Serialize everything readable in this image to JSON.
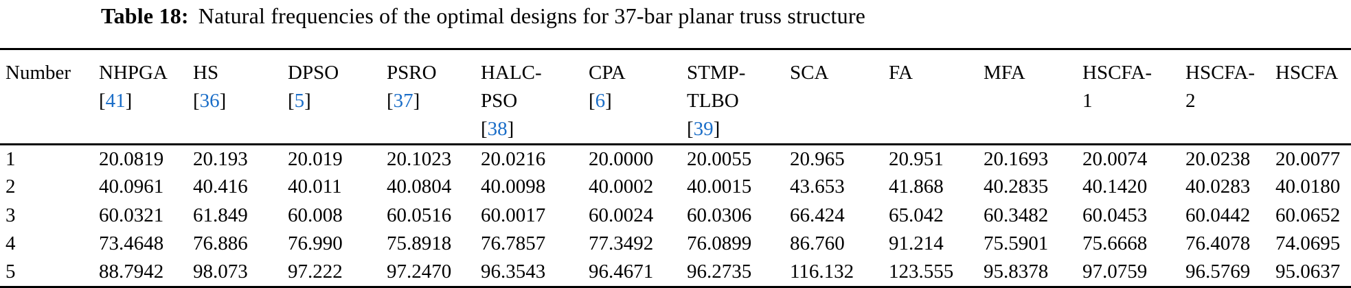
{
  "title": {
    "label": "Table 18:",
    "text": "Natural frequencies of the optimal designs for 37-bar planar truss structure"
  },
  "colors": {
    "citation_blue": "#1b6ec8",
    "text_black": "#000000",
    "rule_black": "#000000"
  },
  "table": {
    "row_header": "Number",
    "columns": [
      {
        "lines": [
          "NHPGA"
        ],
        "ref": "[41]"
      },
      {
        "lines": [
          "HS"
        ],
        "ref": "[36]"
      },
      {
        "lines": [
          "DPSO"
        ],
        "ref": "[5]"
      },
      {
        "lines": [
          "PSRO"
        ],
        "ref": "[37]"
      },
      {
        "lines": [
          "HALC-",
          "PSO"
        ],
        "ref": "[38]"
      },
      {
        "lines": [
          "CPA"
        ],
        "ref": "[6]"
      },
      {
        "lines": [
          "STMP-",
          "TLBO"
        ],
        "ref": "[39]"
      },
      {
        "lines": [
          "SCA"
        ]
      },
      {
        "lines": [
          "FA"
        ]
      },
      {
        "lines": [
          "MFA"
        ]
      },
      {
        "lines": [
          "HSCFA-",
          "1"
        ]
      },
      {
        "lines": [
          "HSCFA-",
          "2"
        ]
      },
      {
        "lines": [
          "HSCFA"
        ]
      }
    ],
    "rows": [
      {
        "number": "1",
        "values": [
          "20.0819",
          "20.193",
          "20.019",
          "20.1023",
          "20.0216",
          "20.0000",
          "20.0055",
          "20.965",
          "20.951",
          "20.1693",
          "20.0074",
          "20.0238",
          "20.0077"
        ]
      },
      {
        "number": "2",
        "values": [
          "40.0961",
          "40.416",
          "40.011",
          "40.0804",
          "40.0098",
          "40.0002",
          "40.0015",
          "43.653",
          "41.868",
          "40.2835",
          "40.1420",
          "40.0283",
          "40.0180"
        ]
      },
      {
        "number": "3",
        "values": [
          "60.0321",
          "61.849",
          "60.008",
          "60.0516",
          "60.0017",
          "60.0024",
          "60.0306",
          "66.424",
          "65.042",
          "60.3482",
          "60.0453",
          "60.0442",
          "60.0652"
        ]
      },
      {
        "number": "4",
        "values": [
          "73.4648",
          "76.886",
          "76.990",
          "75.8918",
          "76.7857",
          "77.3492",
          "76.0899",
          "86.760",
          "91.214",
          "75.5901",
          "75.6668",
          "76.4078",
          "74.0695"
        ]
      },
      {
        "number": "5",
        "values": [
          "88.7942",
          "98.073",
          "97.222",
          "97.2470",
          "96.3543",
          "96.4671",
          "96.2735",
          "116.132",
          "123.555",
          "95.8378",
          "97.0759",
          "96.5769",
          "95.0637"
        ]
      }
    ]
  }
}
